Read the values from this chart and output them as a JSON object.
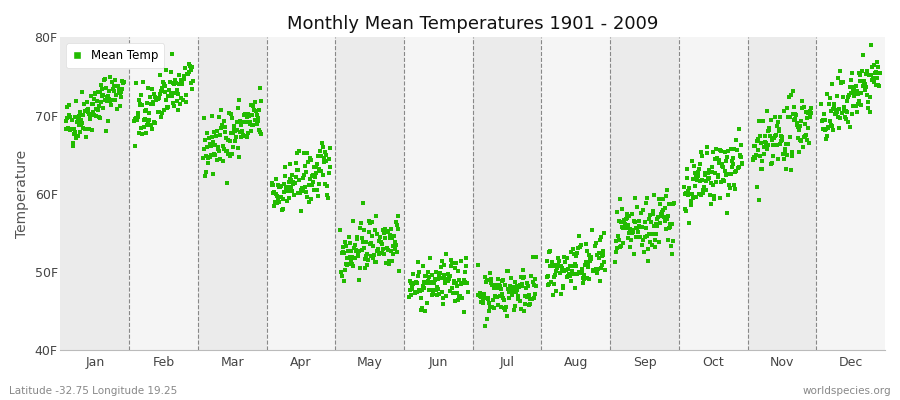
{
  "title": "Monthly Mean Temperatures 1901 - 2009",
  "ylabel": "Temperature",
  "subtitle_left": "Latitude -32.75 Longitude 19.25",
  "subtitle_right": "worldspecies.org",
  "ylim": [
    40,
    80
  ],
  "yticks": [
    40,
    50,
    60,
    70,
    80
  ],
  "ytick_labels": [
    "40F",
    "50F",
    "60F",
    "70F",
    "80F"
  ],
  "months": [
    "Jan",
    "Feb",
    "Mar",
    "Apr",
    "May",
    "Jun",
    "Jul",
    "Aug",
    "Sep",
    "Oct",
    "Nov",
    "Dec"
  ],
  "marker_color": "#22bb00",
  "background_color": "#ffffff",
  "band_color_odd": "#ebebeb",
  "band_color_even": "#f5f5f5",
  "start_year": 1901,
  "end_year": 2009,
  "monthly_means": [
    68.5,
    69.5,
    65.5,
    60.0,
    52.5,
    48.0,
    47.0,
    49.5,
    54.0,
    60.0,
    64.5,
    69.0
  ],
  "monthly_stds": [
    1.6,
    1.8,
    1.8,
    1.8,
    1.8,
    1.5,
    1.5,
    1.7,
    2.0,
    2.0,
    2.0,
    1.8
  ],
  "monthly_trends": [
    0.005,
    0.005,
    0.004,
    0.003,
    0.002,
    0.001,
    0.001,
    0.002,
    0.003,
    0.004,
    0.005,
    0.006
  ],
  "seed": 42
}
